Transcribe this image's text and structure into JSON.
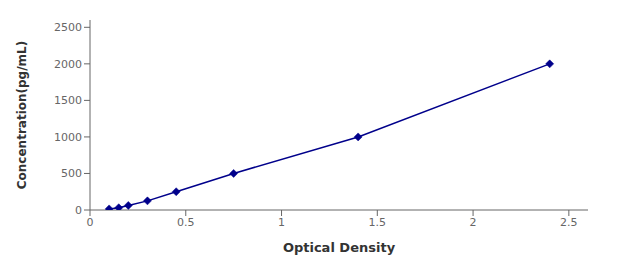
{
  "chart_data": {
    "type": "line",
    "xlabel": "Optical Density",
    "ylabel": "Concentration(pg/mL)",
    "x": [
      0.1,
      0.15,
      0.2,
      0.3,
      0.45,
      0.75,
      1.4,
      2.4
    ],
    "values": [
      15,
      31,
      62,
      125,
      250,
      500,
      1000,
      2000
    ],
    "color": "#00008B",
    "marker": "diamond",
    "xlim": [
      0.0,
      2.6
    ],
    "ylim": [
      0,
      2600
    ],
    "xticks": [
      0,
      0.5,
      1,
      1.5,
      2,
      2.5
    ],
    "yticks": [
      0,
      500,
      1000,
      1500,
      2000,
      2500
    ]
  }
}
